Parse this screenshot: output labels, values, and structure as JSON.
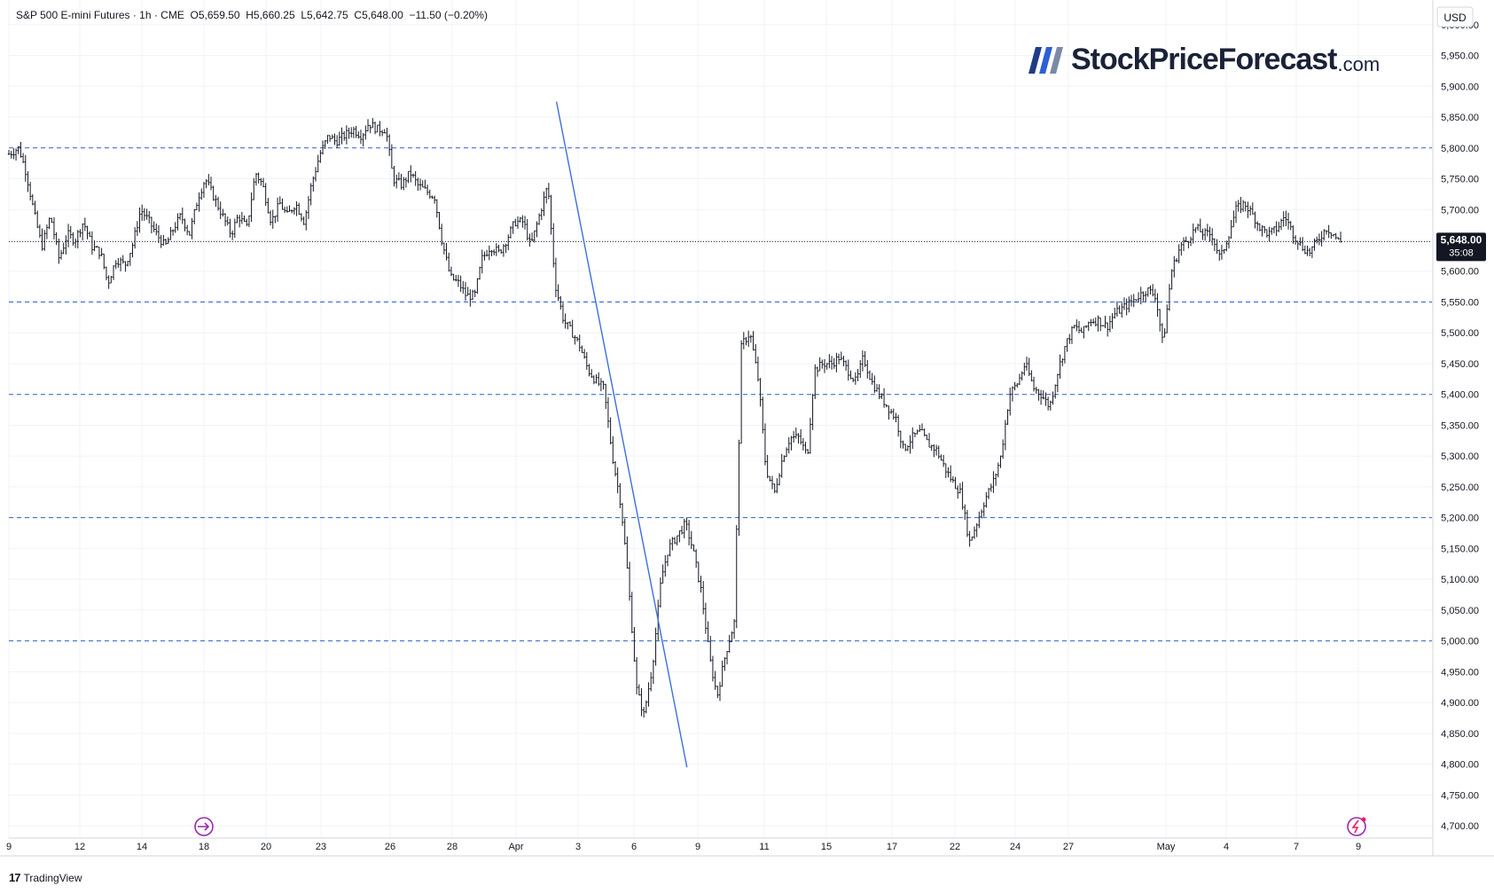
{
  "header": {
    "symbol": "S&P 500 E-mini Futures · 1h · CME",
    "open_label": "O",
    "open": "5,659.50",
    "high_label": "H",
    "high": "5,660.25",
    "low_label": "L",
    "low": "5,642.75",
    "close_label": "C",
    "close": "5,648.00",
    "change": "−11.50 (−0.20%)"
  },
  "currency": "USD",
  "brand": {
    "name": "StockPriceForecast",
    "tld": ".com"
  },
  "footer": {
    "tradingview": "TradingView"
  },
  "last_price": {
    "value": "5,648.00",
    "countdown": "35:08"
  },
  "colors": {
    "price_line": "#131722",
    "trendline": "#3d6fe0",
    "support_lines": "#2e5fd6",
    "last_price_bg": "#131722",
    "event_icon": "#9c27b0"
  },
  "chart_data": {
    "type": "candlestick",
    "interval": "1h",
    "ylim": [
      4680,
      6040
    ],
    "y_ticks": [
      4700,
      4750,
      4800,
      4850,
      4900,
      4950,
      5000,
      5050,
      5100,
      5150,
      5200,
      5250,
      5300,
      5350,
      5400,
      5450,
      5500,
      5550,
      5600,
      5650,
      5700,
      5750,
      5800,
      5850,
      5900,
      5950,
      6000
    ],
    "y_tick_labels": [
      "4,700.00",
      "4,750.00",
      "4,800.00",
      "4,850.00",
      "4,900.00",
      "4,950.00",
      "5,000.00",
      "5,050.00",
      "5,100.00",
      "5,150.00",
      "5,200.00",
      "5,250.00",
      "5,300.00",
      "5,350.00",
      "5,400.00",
      "5,450.00",
      "5,500.00",
      "5,550.00",
      "5,600.00",
      "5,650.00",
      "5,700.00",
      "5,750.00",
      "5,800.00",
      "5,850.00",
      "5,900.00",
      "5,950.00",
      "6,000.00"
    ],
    "x_ticks": [
      "9",
      "12",
      "14",
      "18",
      "20",
      "23",
      "26",
      "28",
      "Apr",
      "3",
      "6",
      "9",
      "11",
      "15",
      "17",
      "22",
      "24",
      "27",
      "May",
      "4",
      "7",
      "9"
    ],
    "horizontal_levels": [
      5800,
      5550,
      5400,
      5200,
      5000
    ],
    "last_price": 5648,
    "path": [
      [
        0,
        5790
      ],
      [
        0.7,
        5800
      ],
      [
        1.2,
        5760
      ],
      [
        1.8,
        5690
      ],
      [
        2.3,
        5640
      ],
      [
        2.9,
        5690
      ],
      [
        3.5,
        5620
      ],
      [
        4.1,
        5660
      ],
      [
        4.6,
        5650
      ],
      [
        5.2,
        5680
      ],
      [
        5.8,
        5640
      ],
      [
        6.4,
        5630
      ],
      [
        6.9,
        5580
      ],
      [
        7.5,
        5620
      ],
      [
        8.1,
        5610
      ],
      [
        8.6,
        5640
      ],
      [
        9.2,
        5700
      ],
      [
        9.8,
        5680
      ],
      [
        10.3,
        5660
      ],
      [
        10.9,
        5640
      ],
      [
        11.5,
        5670
      ],
      [
        12,
        5690
      ],
      [
        12.6,
        5660
      ],
      [
        13.2,
        5720
      ],
      [
        13.7,
        5750
      ],
      [
        14.3,
        5720
      ],
      [
        14.9,
        5690
      ],
      [
        15.5,
        5660
      ],
      [
        16,
        5690
      ],
      [
        16.6,
        5670
      ],
      [
        17.2,
        5760
      ],
      [
        17.7,
        5740
      ],
      [
        18.3,
        5680
      ],
      [
        18.9,
        5710
      ],
      [
        19.4,
        5690
      ],
      [
        20,
        5710
      ],
      [
        20.6,
        5680
      ],
      [
        21.1,
        5740
      ],
      [
        21.7,
        5790
      ],
      [
        22.3,
        5820
      ],
      [
        22.8,
        5810
      ],
      [
        23.4,
        5820
      ],
      [
        24,
        5830
      ],
      [
        24.6,
        5820
      ],
      [
        25.1,
        5840
      ],
      [
        25.7,
        5830
      ],
      [
        26.3,
        5830
      ],
      [
        26.8,
        5750
      ],
      [
        27.4,
        5740
      ],
      [
        28,
        5760
      ],
      [
        28.5,
        5740
      ],
      [
        29.1,
        5730
      ],
      [
        29.7,
        5720
      ],
      [
        30.2,
        5650
      ],
      [
        30.8,
        5590
      ],
      [
        31.4,
        5580
      ],
      [
        31.9,
        5560
      ],
      [
        32.5,
        5560
      ],
      [
        33,
        5620
      ],
      [
        33.6,
        5640
      ],
      [
        34.2,
        5630
      ],
      [
        34.7,
        5650
      ],
      [
        35.3,
        5680
      ],
      [
        35.9,
        5680
      ],
      [
        36.4,
        5640
      ],
      [
        37,
        5690
      ],
      [
        37.6,
        5740
      ],
      [
        38.1,
        5580
      ],
      [
        38.7,
        5520
      ],
      [
        39.3,
        5500
      ],
      [
        39.8,
        5480
      ],
      [
        40.4,
        5440
      ],
      [
        41,
        5420
      ],
      [
        41.5,
        5410
      ],
      [
        42.1,
        5300
      ],
      [
        42.7,
        5220
      ],
      [
        43.2,
        5100
      ],
      [
        43.8,
        4920
      ],
      [
        44.3,
        4880
      ],
      [
        44.9,
        4960
      ],
      [
        45.5,
        5100
      ],
      [
        46,
        5150
      ],
      [
        46.6,
        5170
      ],
      [
        47.2,
        5190
      ],
      [
        47.7,
        5150
      ],
      [
        48.3,
        5080
      ],
      [
        48.9,
        4970
      ],
      [
        49.4,
        4910
      ],
      [
        50,
        4980
      ],
      [
        50.6,
        5030
      ],
      [
        51.1,
        5480
      ],
      [
        51.7,
        5500
      ],
      [
        52.3,
        5420
      ],
      [
        52.8,
        5280
      ],
      [
        53.4,
        5240
      ],
      [
        54,
        5300
      ],
      [
        54.5,
        5330
      ],
      [
        55.1,
        5330
      ],
      [
        55.7,
        5300
      ],
      [
        56.2,
        5440
      ],
      [
        56.8,
        5450
      ],
      [
        57.4,
        5450
      ],
      [
        57.9,
        5460
      ],
      [
        58.5,
        5440
      ],
      [
        59.1,
        5420
      ],
      [
        59.6,
        5460
      ],
      [
        60.2,
        5420
      ],
      [
        60.7,
        5400
      ],
      [
        61.3,
        5380
      ],
      [
        61.9,
        5360
      ],
      [
        62.4,
        5310
      ],
      [
        63,
        5330
      ],
      [
        63.6,
        5340
      ],
      [
        64.1,
        5320
      ],
      [
        64.7,
        5310
      ],
      [
        65.3,
        5280
      ],
      [
        65.8,
        5260
      ],
      [
        66.4,
        5240
      ],
      [
        67,
        5160
      ],
      [
        67.5,
        5190
      ],
      [
        68.1,
        5230
      ],
      [
        68.7,
        5260
      ],
      [
        69.2,
        5300
      ],
      [
        69.8,
        5400
      ],
      [
        70.4,
        5420
      ],
      [
        70.9,
        5450
      ],
      [
        71.5,
        5410
      ],
      [
        72,
        5400
      ],
      [
        72.6,
        5380
      ],
      [
        73.2,
        5440
      ],
      [
        73.7,
        5480
      ],
      [
        74.3,
        5510
      ],
      [
        74.9,
        5500
      ],
      [
        75.4,
        5520
      ],
      [
        76,
        5520
      ],
      [
        76.6,
        5510
      ],
      [
        77.1,
        5530
      ],
      [
        77.7,
        5540
      ],
      [
        78.3,
        5550
      ],
      [
        78.8,
        5560
      ],
      [
        79.4,
        5570
      ],
      [
        80,
        5560
      ],
      [
        80.5,
        5480
      ],
      [
        81.1,
        5600
      ],
      [
        81.7,
        5640
      ],
      [
        82.2,
        5650
      ],
      [
        82.8,
        5670
      ],
      [
        83.4,
        5660
      ],
      [
        83.9,
        5660
      ],
      [
        84.5,
        5620
      ],
      [
        85.1,
        5660
      ],
      [
        85.6,
        5700
      ],
      [
        86.2,
        5710
      ],
      [
        86.8,
        5690
      ],
      [
        87.3,
        5670
      ],
      [
        87.9,
        5660
      ],
      [
        88.5,
        5670
      ],
      [
        89,
        5690
      ],
      [
        89.6,
        5660
      ],
      [
        90.2,
        5640
      ],
      [
        90.7,
        5630
      ],
      [
        91.3,
        5650
      ],
      [
        91.9,
        5670
      ],
      [
        92.4,
        5660
      ],
      [
        92.7,
        5650
      ],
      [
        92.9,
        5648
      ]
    ],
    "trendline": [
      [
        38.2,
        5875
      ],
      [
        47.3,
        4795
      ]
    ]
  }
}
